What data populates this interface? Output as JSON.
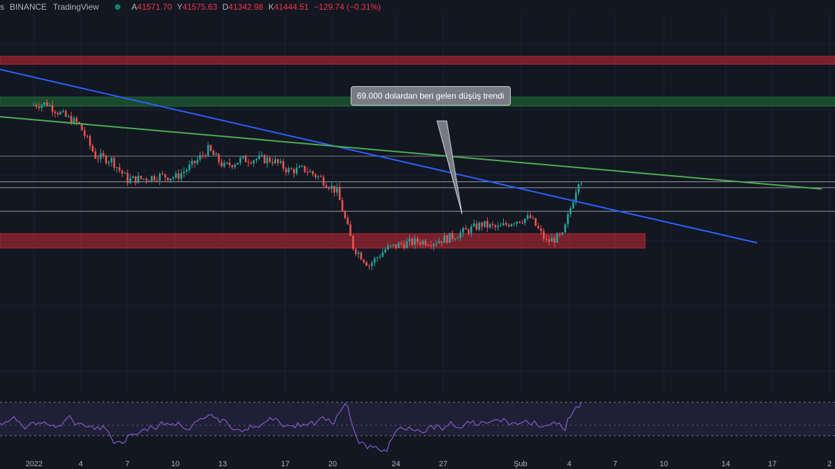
{
  "header": {
    "symbol_suffix": "s",
    "exchange": "BINANCE",
    "platform": "TradingView",
    "ohlc": [
      {
        "label": "A",
        "value": "41571.70"
      },
      {
        "label": "Y",
        "value": "41575.63"
      },
      {
        "label": "D",
        "value": "41342.98"
      },
      {
        "label": "K",
        "value": "41444.51"
      },
      {
        "label": "",
        "value": "−129.74 (−0.31%)"
      }
    ]
  },
  "annotation": {
    "text": "69.000 dolardan beri gelen düşüş trendi"
  },
  "x_axis": {
    "ticks": [
      "2022",
      "4",
      "7",
      "10",
      "13",
      "17",
      "20",
      "24",
      "27",
      "Şub",
      "4",
      "7",
      "10",
      "14",
      "17",
      "2"
    ]
  },
  "colors": {
    "background": "#131722",
    "candle_up": "#26a69a",
    "candle_down": "#ef5350",
    "resistance_zone": "#b22833",
    "support_zone": "#1e6b35",
    "trendline_blue": "#2962ff",
    "trendline_green": "#4caf50",
    "oscillator_line": "#7e57c2",
    "live_dot": "#089981"
  },
  "chart_data": {
    "type": "candlestick",
    "title": "",
    "price_series": [
      {
        "date": "2022-01-01",
        "close": 47300
      },
      {
        "date": "2022-01-02",
        "close": 47400
      },
      {
        "date": "2022-01-03",
        "close": 46500
      },
      {
        "date": "2022-01-04",
        "close": 45800
      },
      {
        "date": "2022-01-05",
        "close": 43400
      },
      {
        "date": "2022-01-06",
        "close": 43100
      },
      {
        "date": "2022-01-07",
        "close": 41600
      },
      {
        "date": "2022-01-08",
        "close": 41700
      },
      {
        "date": "2022-01-09",
        "close": 41900
      },
      {
        "date": "2022-01-10",
        "close": 41800
      },
      {
        "date": "2022-01-11",
        "close": 42700
      },
      {
        "date": "2022-01-12",
        "close": 43900
      },
      {
        "date": "2022-01-13",
        "close": 42600
      },
      {
        "date": "2022-01-14",
        "close": 43100
      },
      {
        "date": "2022-01-15",
        "close": 43200
      },
      {
        "date": "2022-01-16",
        "close": 43100
      },
      {
        "date": "2022-01-17",
        "close": 42300
      },
      {
        "date": "2022-01-18",
        "close": 42400
      },
      {
        "date": "2022-01-19",
        "close": 41700
      },
      {
        "date": "2022-01-20",
        "close": 40700
      },
      {
        "date": "2022-01-21",
        "close": 36500
      },
      {
        "date": "2022-01-22",
        "close": 35100
      },
      {
        "date": "2022-01-23",
        "close": 36300
      },
      {
        "date": "2022-01-24",
        "close": 36700
      },
      {
        "date": "2022-01-25",
        "close": 36900
      },
      {
        "date": "2022-01-26",
        "close": 36900
      },
      {
        "date": "2022-01-27",
        "close": 37200
      },
      {
        "date": "2022-01-28",
        "close": 37700
      },
      {
        "date": "2022-01-29",
        "close": 38200
      },
      {
        "date": "2022-01-30",
        "close": 37900
      },
      {
        "date": "2022-01-31",
        "close": 38500
      },
      {
        "date": "2022-02-01",
        "close": 38700
      },
      {
        "date": "2022-02-02",
        "close": 36900
      },
      {
        "date": "2022-02-03",
        "close": 37300
      },
      {
        "date": "2022-02-04",
        "close": 41600
      },
      {
        "date": "2022-02-05",
        "close": 41444.51
      }
    ],
    "last_bar": {
      "open": 41571.7,
      "high": 41575.63,
      "low": 41342.98,
      "close": 41444.51,
      "change": -129.74,
      "change_pct": -0.31
    },
    "horizontal_levels": [
      43400,
      41450,
      41000,
      39200
    ],
    "zones": [
      {
        "name": "resistance",
        "from": 51000,
        "to": 50400
      },
      {
        "name": "support",
        "from": 47900,
        "to": 47200
      },
      {
        "name": "support",
        "from": 37500,
        "to": 36400
      }
    ],
    "trendlines": [
      {
        "name": "descending-trendline",
        "from": {
          "date": "2021-12-30",
          "price": 50000
        },
        "to": {
          "date": "2022-02-15",
          "price": 36800
        }
      },
      {
        "name": "lower-highs-trendline",
        "from": {
          "date": "2021-12-30",
          "price": 46400
        },
        "to": {
          "date": "2022-02-19",
          "price": 40900
        }
      }
    ],
    "x_range": [
      "2021-12-30",
      "2022-02-20"
    ],
    "oscillator": {
      "type": "line",
      "upper_band": 70,
      "lower_band": 30
    }
  }
}
